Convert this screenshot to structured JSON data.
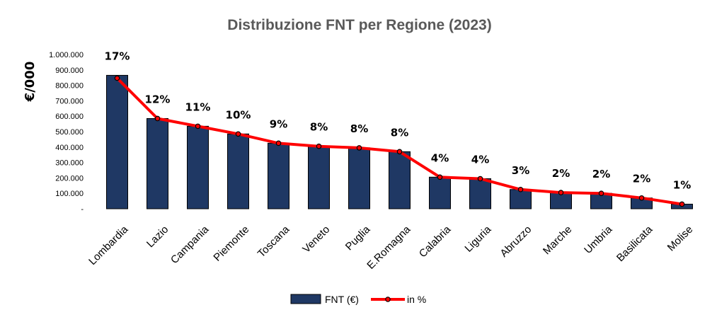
{
  "chart_data": {
    "type": "bar",
    "title": "Distribuzione FNT per Regione  (2023)",
    "ylabel": "€/000",
    "xlabel": "",
    "ylim": [
      0,
      1000000
    ],
    "yticks": [
      0,
      100000,
      200000,
      300000,
      400000,
      500000,
      600000,
      700000,
      800000,
      900000,
      1000000
    ],
    "ytick_labels": [
      "-",
      "100.000",
      "200.000",
      "300.000",
      "400.000",
      "500.000",
      "600.000",
      "700.000",
      "800.000",
      "900.000",
      "1.000.000"
    ],
    "categories": [
      "Lombardia",
      "Lazio",
      "Campania",
      "Piemonte",
      "Toscana",
      "Veneto",
      "Puglia",
      "E.Romagna",
      "Calabria",
      "Liguria",
      "Abruzzo",
      "Marche",
      "Umbria",
      "Basilicata",
      "Molise"
    ],
    "series": [
      {
        "name": "FNT (€)",
        "type": "bar",
        "color": "#1f3864",
        "values": [
          865000,
          585000,
          535000,
          485000,
          425000,
          405000,
          395000,
          370000,
          205000,
          195000,
          125000,
          105000,
          100000,
          70000,
          30000
        ]
      },
      {
        "name": "in %",
        "type": "line",
        "color": "#ff0000",
        "values": [
          17,
          12,
          11,
          10,
          9,
          8,
          8,
          8,
          4,
          4,
          3,
          2,
          2,
          2,
          1
        ],
        "labels": [
          "17%",
          "12%",
          "11%",
          "10%",
          "9%",
          "8%",
          "8%",
          "8%",
          "4%",
          "4%",
          "3%",
          "2%",
          "2%",
          "2%",
          "1%"
        ]
      }
    ],
    "grid": false,
    "legend_position": "bottom"
  }
}
